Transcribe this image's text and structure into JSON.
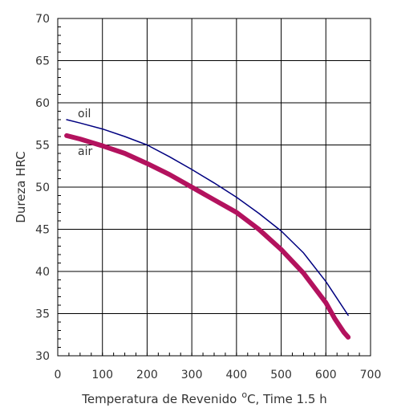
{
  "chart_data": {
    "type": "line",
    "xlabel": "Temperatura de Revenido",
    "xlabel_unit_superscript": "o",
    "xlabel_suffix": "C, Time 1.5 h",
    "ylabel": "Dureza HRC",
    "xlim": [
      0,
      700
    ],
    "ylim": [
      30,
      70
    ],
    "x_ticks": [
      0,
      100,
      200,
      300,
      400,
      500,
      600,
      700
    ],
    "y_ticks": [
      30,
      35,
      40,
      45,
      50,
      55,
      60,
      65,
      70
    ],
    "x_tick_labels": [
      "0",
      "100",
      "200",
      "300",
      "400",
      "500",
      "600",
      "700"
    ],
    "y_tick_labels": [
      "30",
      "35",
      "40",
      "45",
      "50",
      "55",
      "60",
      "65",
      "70"
    ],
    "grid": true,
    "minor_ticks_x": 25,
    "minor_ticks_y": 1,
    "series": [
      {
        "name": "oil",
        "color": "#000080",
        "x": [
          20,
          50,
          100,
          150,
          200,
          250,
          300,
          350,
          400,
          450,
          500,
          550,
          600,
          625,
          650
        ],
        "y": [
          58,
          57.6,
          56.9,
          56.0,
          55.0,
          53.6,
          52.1,
          50.5,
          48.8,
          46.9,
          44.8,
          42.2,
          38.8,
          36.8,
          34.8
        ]
      },
      {
        "name": "air",
        "color": "#b3125e",
        "x": [
          20,
          50,
          100,
          150,
          200,
          250,
          300,
          350,
          400,
          450,
          500,
          550,
          600,
          620,
          640,
          650
        ],
        "y": [
          56.1,
          55.7,
          54.9,
          54.0,
          52.8,
          51.5,
          50.0,
          48.5,
          47.0,
          45.0,
          42.6,
          39.8,
          36.3,
          34.4,
          32.8,
          32.2
        ]
      }
    ]
  }
}
